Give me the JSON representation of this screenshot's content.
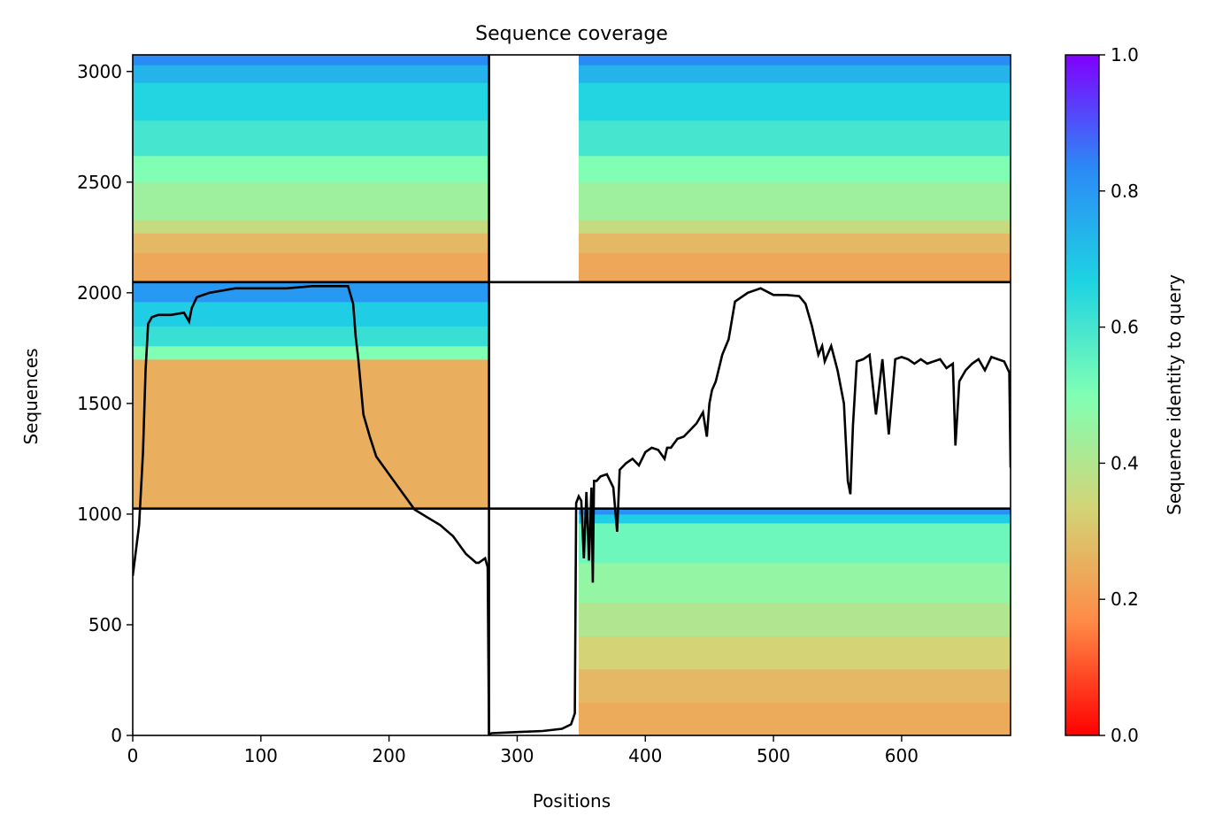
{
  "chart_data": {
    "type": "heatmap",
    "title": "Sequence coverage",
    "xlabel": "Positions",
    "ylabel": "Sequences",
    "xlim": [
      0,
      685
    ],
    "ylim": [
      0,
      3075
    ],
    "xticks": [
      0,
      100,
      200,
      300,
      400,
      500,
      600
    ],
    "yticks": [
      0,
      500,
      1000,
      1500,
      2000,
      2500,
      3000
    ],
    "colorbar": {
      "label": "Sequence identity to query",
      "range": [
        0.0,
        1.0
      ],
      "ticks": [
        "0.0",
        "0.2",
        "0.4",
        "0.6",
        "0.8",
        "1.0"
      ],
      "colormap": "rainbow",
      "stops": [
        "#ff0000",
        "#ff8a46",
        "#d3d476",
        "#80ffb4",
        "#1ed3e2",
        "#2b8af6",
        "#8000ff"
      ]
    },
    "chain_boundaries": {
      "x": [
        278
      ],
      "y": [
        1025,
        2048
      ]
    },
    "blocks": [
      {
        "x": [
          0,
          278
        ],
        "y": [
          2048,
          3075
        ],
        "bands": [
          {
            "y": [
              2048,
              2180
            ],
            "identity": 0.23
          },
          {
            "y": [
              2180,
              2270
            ],
            "identity": 0.27
          },
          {
            "y": [
              2270,
              2330
            ],
            "identity": 0.36
          },
          {
            "y": [
              2330,
              2500
            ],
            "identity": 0.44
          },
          {
            "y": [
              2500,
              2620
            ],
            "identity": 0.5
          },
          {
            "y": [
              2620,
              2780
            ],
            "identity": 0.6
          },
          {
            "y": [
              2780,
              2950
            ],
            "identity": 0.66
          },
          {
            "y": [
              2950,
              3030
            ],
            "identity": 0.74
          },
          {
            "y": [
              3030,
              3075
            ],
            "identity": 0.83
          }
        ]
      },
      {
        "x": [
          348,
          685
        ],
        "y": [
          2048,
          3075
        ],
        "bands": [
          {
            "y": [
              2048,
              2180
            ],
            "identity": 0.23
          },
          {
            "y": [
              2180,
              2270
            ],
            "identity": 0.27
          },
          {
            "y": [
              2270,
              2330
            ],
            "identity": 0.36
          },
          {
            "y": [
              2330,
              2500
            ],
            "identity": 0.44
          },
          {
            "y": [
              2500,
              2620
            ],
            "identity": 0.5
          },
          {
            "y": [
              2620,
              2780
            ],
            "identity": 0.6
          },
          {
            "y": [
              2780,
              2950
            ],
            "identity": 0.66
          },
          {
            "y": [
              2950,
              3030
            ],
            "identity": 0.74
          },
          {
            "y": [
              3030,
              3075
            ],
            "identity": 0.83
          }
        ]
      },
      {
        "x": [
          0,
          278
        ],
        "y": [
          1025,
          2048
        ],
        "bands": [
          {
            "y": [
              1025,
              1700
            ],
            "identity": 0.25
          },
          {
            "y": [
              1700,
              1760
            ],
            "identity": 0.5
          },
          {
            "y": [
              1760,
              1850
            ],
            "identity": 0.62
          },
          {
            "y": [
              1850,
              1960
            ],
            "identity": 0.68
          },
          {
            "y": [
              1960,
              2048
            ],
            "identity": 0.8
          }
        ]
      },
      {
        "x": [
          348,
          685
        ],
        "y": [
          0,
          1025
        ],
        "bands": [
          {
            "y": [
              0,
              150
            ],
            "identity": 0.24
          },
          {
            "y": [
              150,
              300
            ],
            "identity": 0.27
          },
          {
            "y": [
              300,
              450
            ],
            "identity": 0.33
          },
          {
            "y": [
              450,
              600
            ],
            "identity": 0.4
          },
          {
            "y": [
              600,
              780
            ],
            "identity": 0.46
          },
          {
            "y": [
              780,
              960
            ],
            "identity": 0.53
          },
          {
            "y": [
              960,
              1000
            ],
            "identity": 0.68
          },
          {
            "y": [
              1000,
              1025
            ],
            "identity": 0.82
          }
        ]
      }
    ],
    "coverage_line": {
      "x": [
        0,
        5,
        8,
        10,
        12,
        15,
        20,
        30,
        40,
        44,
        46,
        50,
        60,
        80,
        100,
        120,
        140,
        160,
        168,
        172,
        174,
        176,
        180,
        185,
        190,
        195,
        200,
        210,
        220,
        230,
        240,
        250,
        260,
        268,
        270,
        275,
        277,
        278,
        280,
        300,
        320,
        335,
        342,
        345,
        346,
        348,
        350,
        352,
        354,
        356,
        358,
        359,
        360,
        362,
        365,
        370,
        375,
        378,
        380,
        385,
        390,
        395,
        400,
        405,
        410,
        415,
        417,
        420,
        425,
        430,
        435,
        440,
        445,
        448,
        450,
        452,
        455,
        460,
        465,
        470,
        480,
        490,
        500,
        510,
        520,
        525,
        530,
        535,
        538,
        540,
        545,
        550,
        555,
        558,
        560,
        562,
        565,
        570,
        575,
        580,
        585,
        590,
        595,
        600,
        605,
        610,
        615,
        620,
        625,
        630,
        635,
        640,
        642,
        645,
        650,
        655,
        660,
        665,
        670,
        675,
        680,
        684,
        685
      ],
      "y": [
        720,
        950,
        1280,
        1650,
        1860,
        1890,
        1900,
        1900,
        1910,
        1870,
        1930,
        1980,
        2000,
        2020,
        2020,
        2020,
        2030,
        2030,
        2030,
        1950,
        1800,
        1700,
        1450,
        1350,
        1260,
        1220,
        1180,
        1100,
        1020,
        985,
        950,
        900,
        820,
        780,
        780,
        800,
        760,
        5,
        10,
        15,
        20,
        30,
        50,
        100,
        1050,
        1080,
        1060,
        800,
        1100,
        790,
        1120,
        690,
        1150,
        1150,
        1170,
        1180,
        1120,
        920,
        1200,
        1230,
        1250,
        1220,
        1280,
        1300,
        1290,
        1250,
        1300,
        1300,
        1340,
        1350,
        1380,
        1410,
        1460,
        1350,
        1500,
        1560,
        1600,
        1720,
        1790,
        1960,
        2000,
        2020,
        1990,
        1990,
        1985,
        1950,
        1850,
        1720,
        1760,
        1690,
        1760,
        1650,
        1500,
        1150,
        1090,
        1400,
        1690,
        1700,
        1720,
        1450,
        1700,
        1360,
        1700,
        1710,
        1700,
        1680,
        1700,
        1680,
        1690,
        1700,
        1660,
        1680,
        1310,
        1600,
        1650,
        1680,
        1700,
        1650,
        1710,
        1700,
        1690,
        1640,
        1210
      ]
    }
  }
}
